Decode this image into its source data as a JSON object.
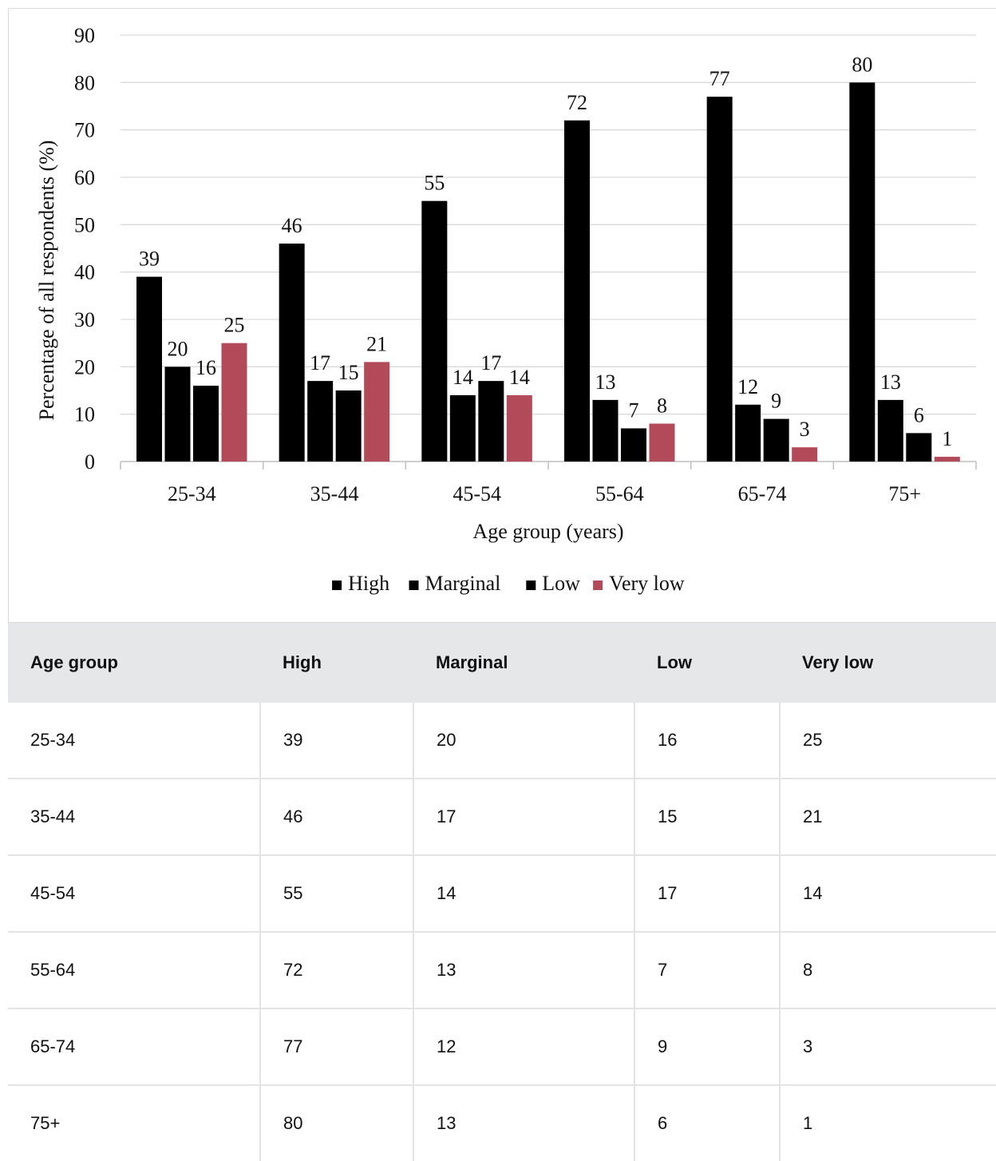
{
  "chart_data": {
    "type": "bar",
    "title": "",
    "xlabel": "Age group (years)",
    "ylabel": "Percentage of all respondents (%)",
    "ylim": [
      0,
      90
    ],
    "yticks": [
      "0",
      "10",
      "20",
      "30",
      "40",
      "50",
      "60",
      "70",
      "80",
      "90"
    ],
    "grid": true,
    "legend_position": "bottom",
    "categories": [
      "25-34",
      "35-44",
      "45-54",
      "55-64",
      "65-74",
      "75+"
    ],
    "series": [
      {
        "name": "High",
        "color": "#000000",
        "values": [
          39,
          46,
          55,
          72,
          77,
          80
        ]
      },
      {
        "name": "Marginal",
        "color": "#000000",
        "values": [
          20,
          17,
          14,
          13,
          12,
          13
        ]
      },
      {
        "name": "Low",
        "color": "#000000",
        "values": [
          16,
          15,
          17,
          7,
          9,
          6
        ]
      },
      {
        "name": "Very low",
        "color": "#b34a5a",
        "values": [
          25,
          21,
          14,
          8,
          3,
          1
        ]
      }
    ]
  },
  "table": {
    "headers": [
      "Age group",
      "High",
      "Marginal",
      "Low",
      "Very low"
    ],
    "rows": [
      [
        "25-34",
        "39",
        "20",
        "16",
        "25"
      ],
      [
        "35-44",
        "46",
        "17",
        "15",
        "21"
      ],
      [
        "45-54",
        "55",
        "14",
        "17",
        "14"
      ],
      [
        "55-64",
        "72",
        "13",
        "7",
        "8"
      ],
      [
        "65-74",
        "77",
        "12",
        "9",
        "3"
      ],
      [
        "75+",
        "80",
        "13",
        "6",
        "1"
      ]
    ]
  }
}
